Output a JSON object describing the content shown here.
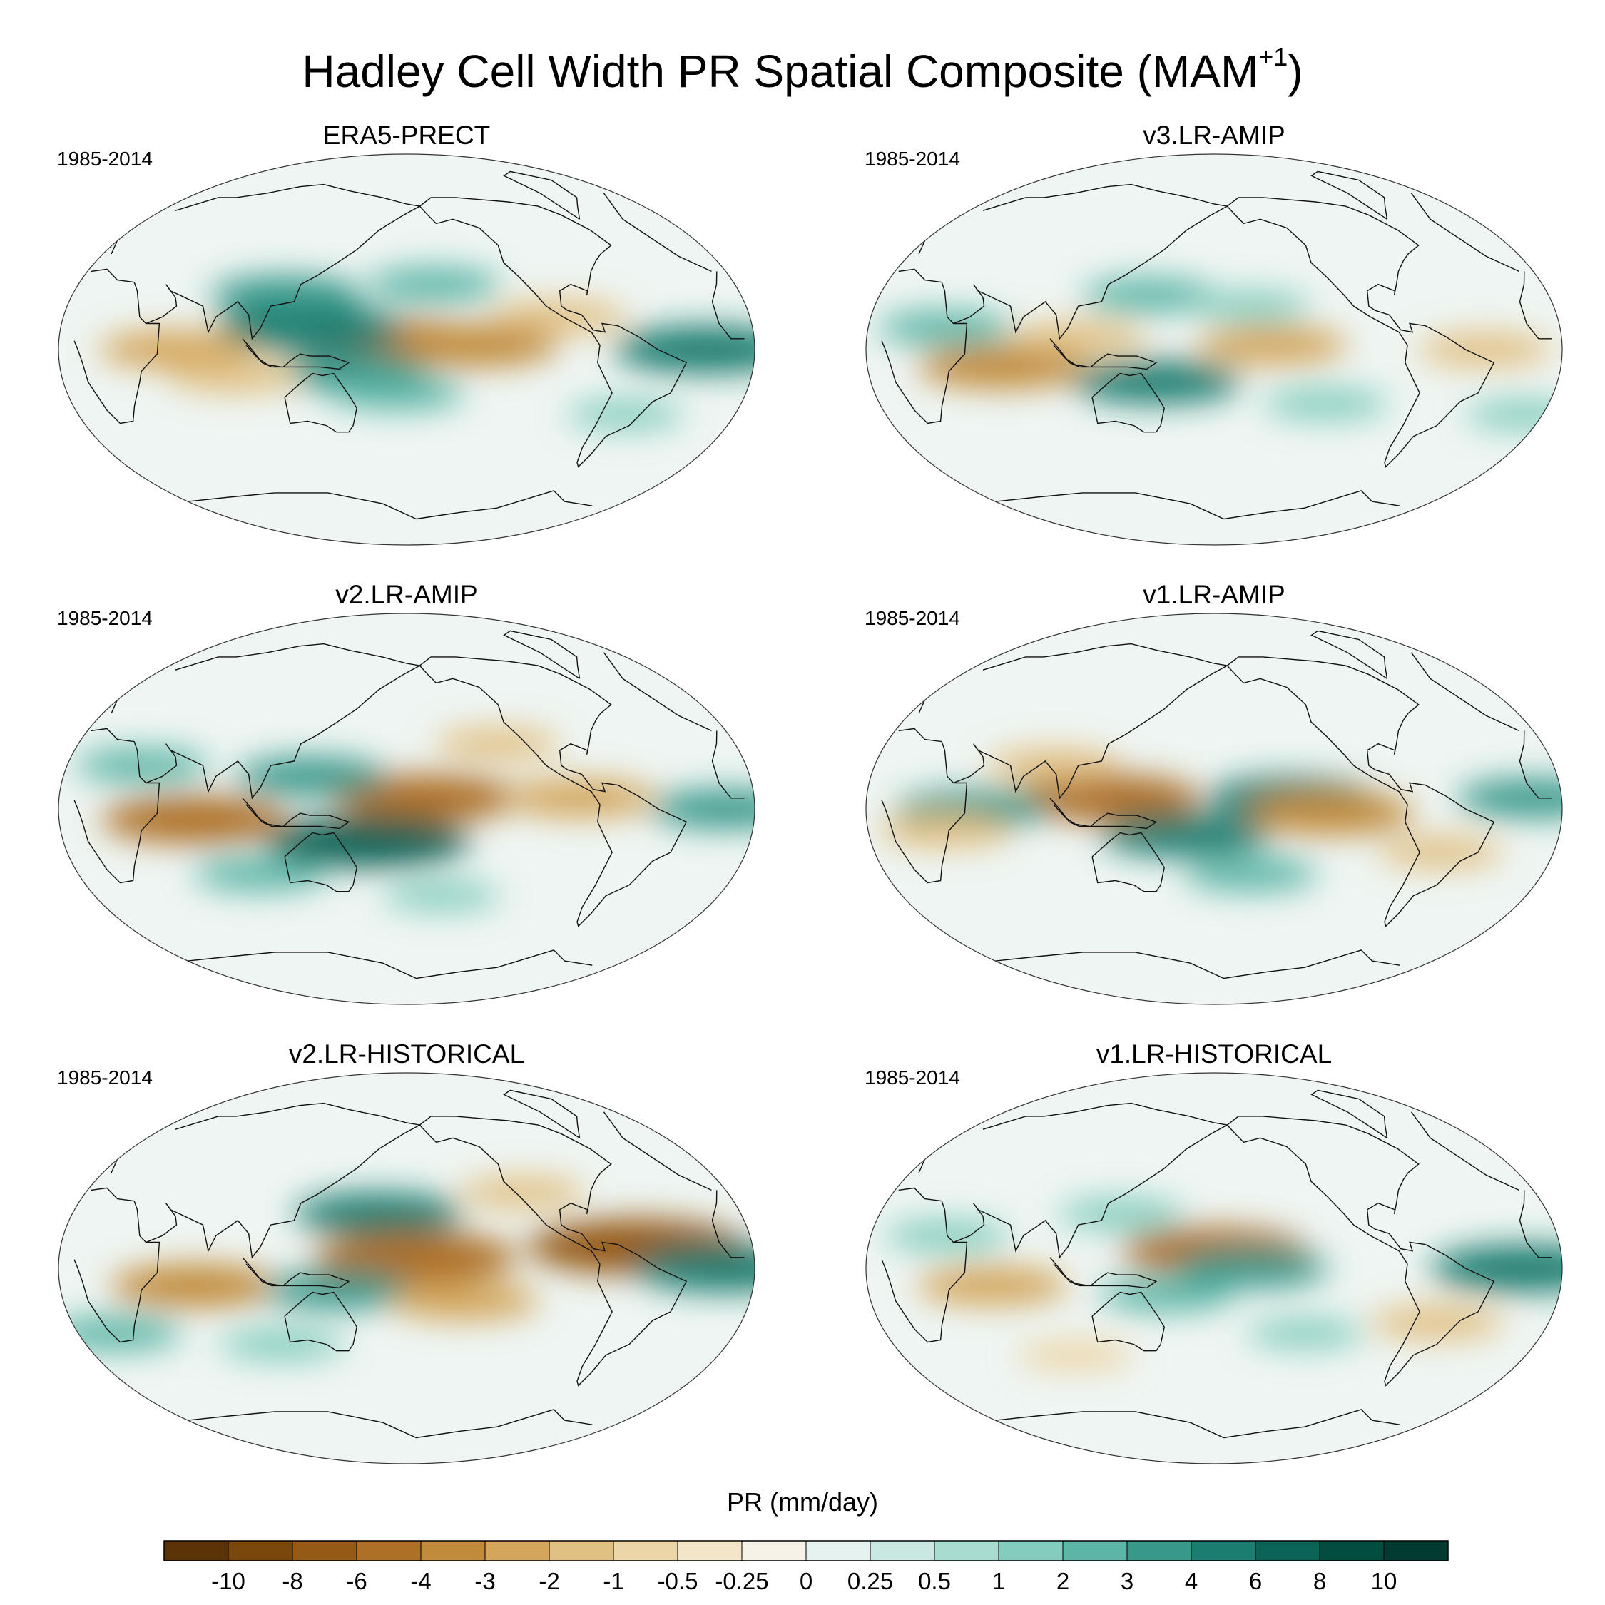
{
  "figure": {
    "title": "Hadley Cell Width PR Spatial Composite (MAM",
    "title_superscript": "+1",
    "title_close": ")"
  },
  "panels": [
    {
      "title": "ERA5-PRECT",
      "period": "1985-2014"
    },
    {
      "title": "v3.LR-AMIP",
      "period": "1985-2014"
    },
    {
      "title": "v2.LR-AMIP",
      "period": "1985-2014"
    },
    {
      "title": "v1.LR-AMIP",
      "period": "1985-2014"
    },
    {
      "title": "v2.LR-HISTORICAL",
      "period": "1985-2014"
    },
    {
      "title": "v1.LR-HISTORICAL",
      "period": "1985-2014"
    }
  ],
  "colorbar": {
    "title": "PR (mm/day)",
    "tick_labels": [
      "-10",
      "-8",
      "-6",
      "-4",
      "-3",
      "-2",
      "-1",
      "-0.5",
      "-0.25",
      "0",
      "0.25",
      "0.5",
      "1",
      "2",
      "3",
      "4",
      "6",
      "8",
      "10"
    ],
    "colors": [
      "#5a3306",
      "#7a470d",
      "#955a16",
      "#ad7026",
      "#c18b3b",
      "#d3a65c",
      "#e1c083",
      "#ecd6a8",
      "#f3e6c8",
      "#f6f2e8",
      "#e6f2ef",
      "#c9e8e1",
      "#a8dcd1",
      "#84cdbe",
      "#5cb5a6",
      "#38988a",
      "#1b7d70",
      "#0b6457",
      "#034c40",
      "#003a30"
    ]
  },
  "chart_data": {
    "type": "heatmap",
    "projection": "robinson-like global map",
    "variable": "PR (mm/day)",
    "contour_levels": [
      -10,
      -8,
      -6,
      -4,
      -3,
      -2,
      -1,
      -0.5,
      -0.25,
      0,
      0.25,
      0.5,
      1,
      2,
      3,
      4,
      6,
      8,
      10
    ],
    "panels": [
      {
        "title": "ERA5-PRECT",
        "period": "1985-2014",
        "features": [
          {
            "lon": 175,
            "lat": 3,
            "value": -5
          },
          {
            "lon": 215,
            "lat": 2,
            "value": -4
          },
          {
            "lon": 130,
            "lat": 10,
            "value": 5
          },
          {
            "lon": 115,
            "lat": 25,
            "value": 3
          },
          {
            "lon": 335,
            "lat": 0,
            "value": 5
          },
          {
            "lon": 60,
            "lat": 0,
            "value": -3
          },
          {
            "lon": 150,
            "lat": -10,
            "value": 3
          },
          {
            "lon": 175,
            "lat": -20,
            "value": 2
          },
          {
            "lon": 195,
            "lat": 30,
            "value": 2
          },
          {
            "lon": 260,
            "lat": 15,
            "value": -2
          },
          {
            "lon": 90,
            "lat": -12,
            "value": -2
          },
          {
            "lon": 300,
            "lat": -30,
            "value": 1
          }
        ]
      },
      {
        "title": "v3.LR-AMIP",
        "period": "1985-2014",
        "features": [
          {
            "lon": 70,
            "lat": -8,
            "value": -4
          },
          {
            "lon": 150,
            "lat": -15,
            "value": 4
          },
          {
            "lon": 210,
            "lat": 2,
            "value": -3
          },
          {
            "lon": 320,
            "lat": 0,
            "value": -2
          },
          {
            "lon": 145,
            "lat": 25,
            "value": 2
          },
          {
            "lon": 110,
            "lat": 5,
            "value": -2
          },
          {
            "lon": 40,
            "lat": 10,
            "value": 2
          },
          {
            "lon": 200,
            "lat": 20,
            "value": 1
          },
          {
            "lon": 240,
            "lat": -25,
            "value": 1.5
          },
          {
            "lon": 350,
            "lat": -30,
            "value": 1
          }
        ]
      },
      {
        "title": "v2.LR-AMIP",
        "period": "1985-2014",
        "features": [
          {
            "lon": 70,
            "lat": -5,
            "value": -5
          },
          {
            "lon": 190,
            "lat": 5,
            "value": -5
          },
          {
            "lon": 160,
            "lat": -15,
            "value": 6
          },
          {
            "lon": 130,
            "lat": 15,
            "value": 3
          },
          {
            "lon": 345,
            "lat": 0,
            "value": 3
          },
          {
            "lon": 40,
            "lat": 20,
            "value": 2
          },
          {
            "lon": 270,
            "lat": 5,
            "value": -3
          },
          {
            "lon": 230,
            "lat": 30,
            "value": -1.5
          },
          {
            "lon": 100,
            "lat": -30,
            "value": 2
          },
          {
            "lon": 200,
            "lat": -40,
            "value": 1
          }
        ]
      },
      {
        "title": "v1.LR-AMIP",
        "period": "1985-2014",
        "features": [
          {
            "lon": 125,
            "lat": 5,
            "value": -5
          },
          {
            "lon": 220,
            "lat": 5,
            "value": 4
          },
          {
            "lon": 240,
            "lat": -2,
            "value": -4
          },
          {
            "lon": 55,
            "lat": 0,
            "value": 3
          },
          {
            "lon": 345,
            "lat": 5,
            "value": 3
          },
          {
            "lon": 165,
            "lat": -12,
            "value": 4
          },
          {
            "lon": 95,
            "lat": 20,
            "value": -2
          },
          {
            "lon": 40,
            "lat": -10,
            "value": -2
          },
          {
            "lon": 200,
            "lat": -30,
            "value": 2
          },
          {
            "lon": 300,
            "lat": -20,
            "value": -1.5
          }
        ]
      },
      {
        "title": "v2.LR-HISTORICAL",
        "period": "1985-2014",
        "features": [
          {
            "lon": 165,
            "lat": 25,
            "value": 4
          },
          {
            "lon": 185,
            "lat": 5,
            "value": -6
          },
          {
            "lon": 300,
            "lat": 10,
            "value": -7
          },
          {
            "lon": 345,
            "lat": 0,
            "value": 5
          },
          {
            "lon": 70,
            "lat": -8,
            "value": -4
          },
          {
            "lon": 145,
            "lat": -10,
            "value": 3
          },
          {
            "lon": 210,
            "lat": -15,
            "value": -3
          },
          {
            "lon": 20,
            "lat": -30,
            "value": 2
          },
          {
            "lon": 110,
            "lat": -35,
            "value": 1.5
          },
          {
            "lon": 245,
            "lat": 35,
            "value": -1.5
          }
        ]
      },
      {
        "title": "v1.LR-HISTORICAL",
        "period": "1985-2014",
        "features": [
          {
            "lon": 180,
            "lat": 8,
            "value": -5
          },
          {
            "lon": 200,
            "lat": 0,
            "value": 3
          },
          {
            "lon": 340,
            "lat": 0,
            "value": 5
          },
          {
            "lon": 65,
            "lat": -8,
            "value": -3
          },
          {
            "lon": 155,
            "lat": -12,
            "value": 2
          },
          {
            "lon": 130,
            "lat": 25,
            "value": 1.5
          },
          {
            "lon": 300,
            "lat": -25,
            "value": -2
          },
          {
            "lon": 40,
            "lat": 15,
            "value": 1.5
          },
          {
            "lon": 230,
            "lat": -30,
            "value": 1
          },
          {
            "lon": 100,
            "lat": -40,
            "value": -1
          }
        ]
      }
    ]
  }
}
